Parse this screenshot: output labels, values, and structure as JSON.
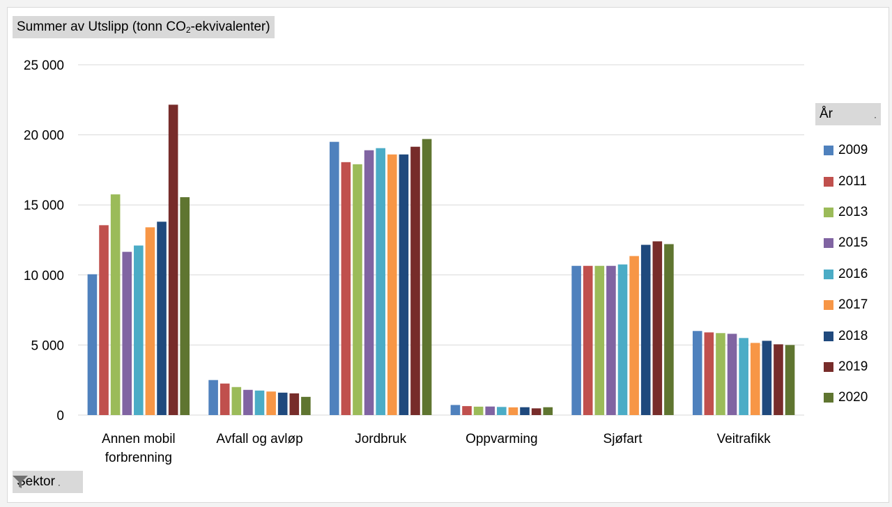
{
  "chart_data": {
    "type": "bar",
    "title": "",
    "value_field_label": "Summer av Utslipp (tonn CO",
    "value_field_sub": "2",
    "value_field_suffix": "-ekvivalenter)",
    "category_field_label": "Sektor",
    "legend_title": "År",
    "legend_placement": "right",
    "ylim": [
      0,
      25000
    ],
    "y_ticks": [
      0,
      5000,
      10000,
      15000,
      20000,
      25000
    ],
    "y_tick_labels": [
      "0",
      "5 000",
      "10 000",
      "15 000",
      "20 000",
      "25 000"
    ],
    "grid": true,
    "categories": [
      [
        "Annen mobil",
        "forbrenning"
      ],
      [
        "Avfall og avløp"
      ],
      [
        "Jordbruk"
      ],
      [
        "Oppvarming"
      ],
      [
        "Sjøfart"
      ],
      [
        "Veitrafikk"
      ]
    ],
    "series": [
      {
        "name": "2009",
        "color": "#4f81bd",
        "values": [
          10050,
          2500,
          19500,
          720,
          10650,
          6000
        ]
      },
      {
        "name": "2011",
        "color": "#c0504d",
        "values": [
          13550,
          2250,
          18050,
          640,
          10650,
          5900
        ]
      },
      {
        "name": "2013",
        "color": "#9bbb59",
        "values": [
          15750,
          2000,
          17900,
          600,
          10650,
          5850
        ]
      },
      {
        "name": "2015",
        "color": "#8064a2",
        "values": [
          11650,
          1800,
          18900,
          610,
          10650,
          5800
        ]
      },
      {
        "name": "2016",
        "color": "#4bacc6",
        "values": [
          12100,
          1750,
          19050,
          580,
          10750,
          5500
        ]
      },
      {
        "name": "2017",
        "color": "#f79646",
        "values": [
          13400,
          1680,
          18600,
          550,
          11350,
          5150
        ]
      },
      {
        "name": "2018",
        "color": "#1f497d",
        "values": [
          13800,
          1600,
          18600,
          560,
          12150,
          5300
        ]
      },
      {
        "name": "2019",
        "color": "#772c2a",
        "values": [
          22150,
          1550,
          19150,
          480,
          12400,
          5050
        ]
      },
      {
        "name": "2020",
        "color": "#5f7530",
        "values": [
          15550,
          1300,
          19700,
          560,
          12200,
          5000
        ]
      }
    ]
  }
}
